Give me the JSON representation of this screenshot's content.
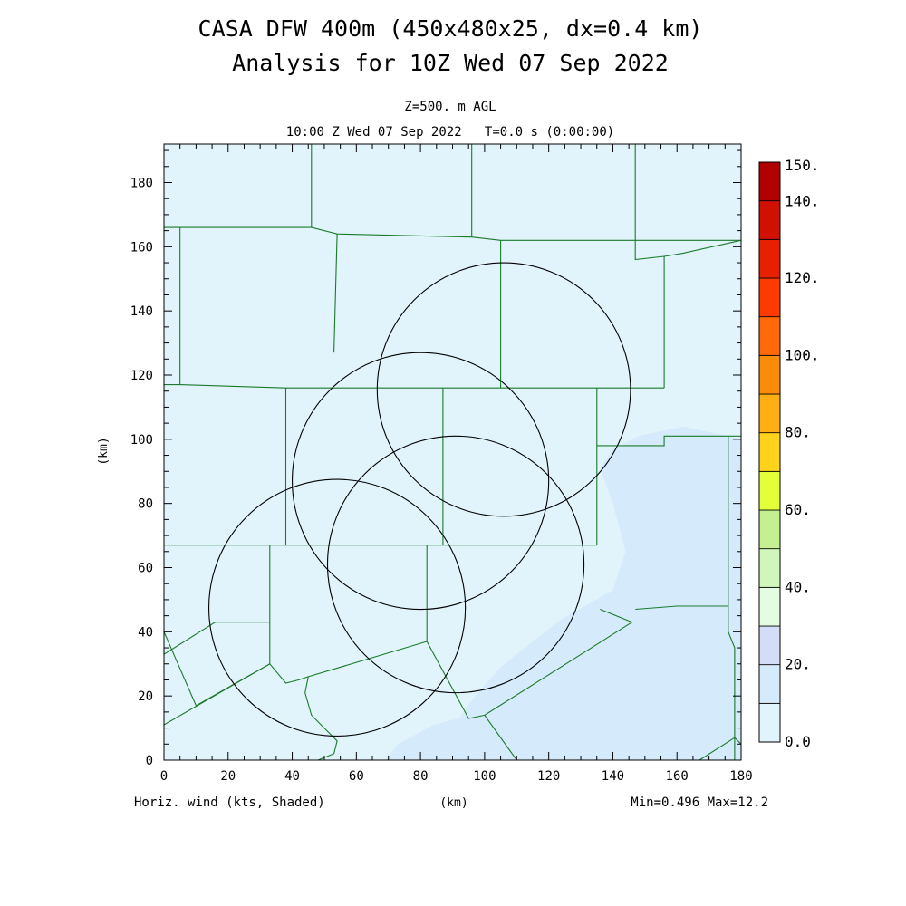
{
  "chart_data": {
    "type": "heatmap",
    "title": "CASA DFW 400m (450x480x25, dx=0.4 km)",
    "subtitle": "Analysis for 10Z Wed 07 Sep 2022",
    "level_label": "Z=500. m AGL",
    "time_label": "10:00 Z Wed 07 Sep 2022   T=0.0 s (0:00:00)",
    "xlabel": "(km)",
    "ylabel": "(km)",
    "xlim": [
      0,
      180
    ],
    "ylim": [
      0,
      192
    ],
    "x_ticks": [
      0,
      20,
      40,
      60,
      80,
      100,
      120,
      140,
      160,
      180
    ],
    "y_ticks": [
      0,
      20,
      40,
      60,
      80,
      100,
      120,
      140,
      160,
      180
    ],
    "field_label": "Horiz. wind (kts, Shaded)",
    "stats_label": "Min=0.496 Max=12.2",
    "min": 0.496,
    "max": 12.2,
    "colorbar": {
      "range": [
        0,
        150
      ],
      "tick_labels": [
        "0.0",
        "20.",
        "40.",
        "60.",
        "80.",
        "100.",
        "120.",
        "140.",
        "150."
      ],
      "bins": [
        {
          "from": 0,
          "to": 10,
          "color": "#e2f4fb"
        },
        {
          "from": 10,
          "to": 20,
          "color": "#d5eafb"
        },
        {
          "from": 20,
          "to": 30,
          "color": "#d4dcf6"
        },
        {
          "from": 30,
          "to": 40,
          "color": "#e4fce1"
        },
        {
          "from": 40,
          "to": 50,
          "color": "#d0f6bb"
        },
        {
          "from": 50,
          "to": 60,
          "color": "#c4f091"
        },
        {
          "from": 60,
          "to": 70,
          "color": "#e2ff3a"
        },
        {
          "from": 70,
          "to": 80,
          "color": "#ffd21c"
        },
        {
          "from": 80,
          "to": 90,
          "color": "#ffae14"
        },
        {
          "from": 90,
          "to": 100,
          "color": "#fb8c0a"
        },
        {
          "from": 100,
          "to": 110,
          "color": "#fe6a0a"
        },
        {
          "from": 110,
          "to": 120,
          "color": "#fd3a00"
        },
        {
          "from": 120,
          "to": 130,
          "color": "#e62000"
        },
        {
          "from": 130,
          "to": 140,
          "color": "#d01000"
        },
        {
          "from": 140,
          "to": 150,
          "color": "#b00000"
        }
      ]
    },
    "background_color": "#e2f4fb",
    "stronger_wind_color": "#d5eafb",
    "county_line_color": "#1a7a2a",
    "radar_ring_color": "#000000",
    "stronger_wind_region": [
      [
        69,
        0
      ],
      [
        73,
        5
      ],
      [
        84,
        11
      ],
      [
        92,
        13
      ],
      [
        97,
        20
      ],
      [
        105,
        29
      ],
      [
        115,
        37
      ],
      [
        124,
        44
      ],
      [
        133,
        49
      ],
      [
        140,
        53
      ],
      [
        144,
        65
      ],
      [
        140,
        80
      ],
      [
        136,
        91
      ],
      [
        140,
        97
      ],
      [
        148,
        101
      ],
      [
        162,
        104
      ],
      [
        180,
        100
      ],
      [
        180,
        0
      ]
    ],
    "radar_rings": [
      {
        "center": [
          106,
          115.5
        ],
        "radius": 39.5
      },
      {
        "center": [
          80,
          87
        ],
        "radius": 40
      },
      {
        "center": [
          91,
          61
        ],
        "radius": 40
      },
      {
        "center": [
          54,
          47.5
        ],
        "radius": 40
      }
    ],
    "county_lines": [
      [
        [
          0,
          166
        ],
        [
          5,
          166
        ],
        [
          5,
          117
        ],
        [
          0,
          117
        ]
      ],
      [
        [
          5,
          166
        ],
        [
          46,
          166
        ],
        [
          54,
          164
        ],
        [
          96,
          163
        ],
        [
          105,
          162
        ],
        [
          148,
          162
        ],
        [
          180,
          162
        ]
      ],
      [
        [
          46,
          192
        ],
        [
          46,
          166
        ]
      ],
      [
        [
          96,
          192
        ],
        [
          96,
          163
        ]
      ],
      [
        [
          147,
          192
        ],
        [
          147,
          156
        ],
        [
          156,
          157
        ],
        [
          162,
          158
        ],
        [
          180,
          162
        ]
      ],
      [
        [
          54,
          164
        ],
        [
          53,
          127
        ]
      ],
      [
        [
          105,
          162
        ],
        [
          105,
          116
        ]
      ],
      [
        [
          156,
          157
        ],
        [
          156,
          116
        ]
      ],
      [
        [
          5,
          117
        ],
        [
          38,
          116
        ],
        [
          53,
          116
        ],
        [
          86,
          116
        ],
        [
          105,
          116
        ],
        [
          135,
          116
        ],
        [
          156,
          116
        ]
      ],
      [
        [
          38,
          116
        ],
        [
          38,
          67
        ]
      ],
      [
        [
          87,
          116
        ],
        [
          87,
          67
        ]
      ],
      [
        [
          135,
          116
        ],
        [
          135,
          67
        ]
      ],
      [
        [
          135,
          98
        ],
        [
          147,
          98
        ],
        [
          156,
          98
        ],
        [
          156,
          101
        ],
        [
          180,
          101
        ]
      ],
      [
        [
          0,
          67
        ],
        [
          33,
          67
        ],
        [
          38,
          67
        ],
        [
          87,
          67
        ],
        [
          135,
          67
        ]
      ],
      [
        [
          33,
          67
        ],
        [
          33,
          30
        ]
      ],
      [
        [
          0,
          33
        ],
        [
          16,
          43
        ],
        [
          33,
          43
        ]
      ],
      [
        [
          0,
          40
        ],
        [
          10,
          17
        ],
        [
          33,
          30
        ],
        [
          38,
          24
        ],
        [
          42,
          25
        ],
        [
          45,
          26
        ]
      ],
      [
        [
          0,
          11
        ],
        [
          33,
          30
        ]
      ],
      [
        [
          82,
          67
        ],
        [
          82,
          37
        ]
      ],
      [
        [
          45,
          26
        ],
        [
          82,
          37
        ],
        [
          95,
          13
        ],
        [
          100,
          14
        ],
        [
          146,
          43
        ]
      ],
      [
        [
          146,
          43
        ],
        [
          136,
          47
        ]
      ],
      [
        [
          100,
          14
        ],
        [
          110,
          0
        ]
      ],
      [
        [
          45,
          26
        ],
        [
          44,
          21
        ],
        [
          46,
          14
        ],
        [
          50,
          10
        ],
        [
          54,
          6
        ],
        [
          53,
          2
        ],
        [
          48,
          0
        ]
      ],
      [
        [
          147,
          47
        ],
        [
          160,
          48
        ],
        [
          176,
          48
        ]
      ],
      [
        [
          176,
          101
        ],
        [
          176,
          48
        ],
        [
          176,
          40
        ],
        [
          178,
          35
        ],
        [
          178,
          0
        ]
      ],
      [
        [
          167,
          0
        ],
        [
          178,
          7
        ],
        [
          180,
          5
        ]
      ]
    ]
  }
}
